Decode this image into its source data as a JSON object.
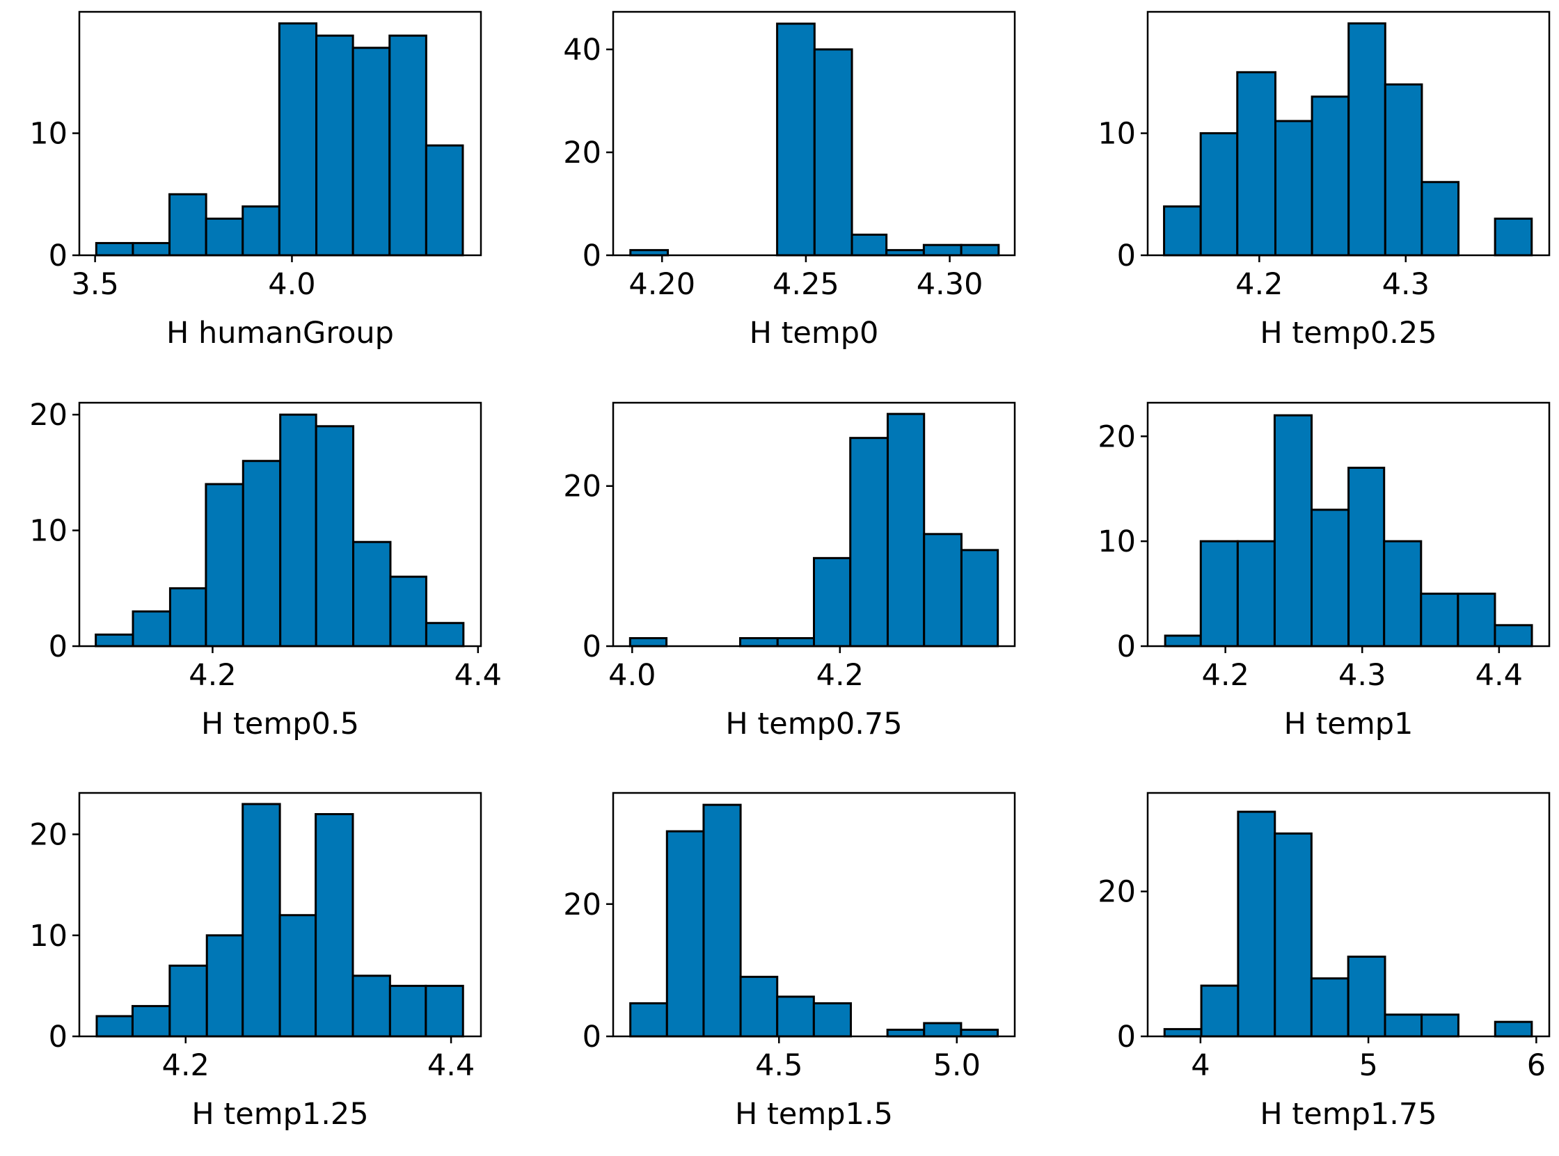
{
  "chart_data": [
    {
      "type": "histogram",
      "xlabel": "H humanGroup",
      "color": "#0077b6",
      "edgecolor": "#000000",
      "bins": [
        3.503,
        3.596,
        3.689,
        3.782,
        3.875,
        3.968,
        4.062,
        4.155,
        4.248,
        4.341,
        4.434
      ],
      "values": [
        1,
        1,
        5,
        3,
        4,
        19,
        18,
        17,
        18,
        9
      ],
      "xlim": [
        3.46,
        4.48
      ],
      "xticks": [
        3.5,
        {
          "value": 4,
          "label": "4.0"
        }
      ],
      "ylim": [
        0,
        19.95
      ],
      "yticks": [
        0,
        10
      ]
    },
    {
      "type": "histogram",
      "xlabel": "H temp0",
      "color": "#0077b6",
      "edgecolor": "#000000",
      "bins": [
        4.189,
        4.202,
        4.214,
        4.227,
        4.24,
        4.253,
        4.266,
        4.278,
        4.291,
        4.304,
        4.317
      ],
      "values": [
        1,
        0,
        0,
        0,
        45,
        40,
        4,
        1,
        2,
        2
      ],
      "xlim": [
        4.183,
        4.3226
      ],
      "xticks": [
        {
          "value": 4.2,
          "label": "4.20"
        },
        4.25,
        {
          "value": 4.3,
          "label": "4.30"
        }
      ],
      "ylim": [
        0,
        47.3
      ],
      "yticks": [
        0,
        20,
        40
      ]
    },
    {
      "type": "histogram",
      "xlabel": "H temp0.25",
      "color": "#0077b6",
      "edgecolor": "#000000",
      "bins": [
        4.135,
        4.16,
        4.185,
        4.211,
        4.236,
        4.261,
        4.286,
        4.311,
        4.336,
        4.361,
        4.386
      ],
      "values": [
        4,
        10,
        15,
        11,
        13,
        19,
        14,
        6,
        0,
        3
      ],
      "xlim": [
        4.1238,
        4.398
      ],
      "xticks": [
        4.2,
        4.3
      ],
      "ylim": [
        0,
        19.95
      ],
      "yticks": [
        0,
        10
      ]
    },
    {
      "type": "histogram",
      "xlabel": "H temp0.5",
      "color": "#0077b6",
      "edgecolor": "#000000",
      "bins": [
        4.112,
        4.14,
        4.168,
        4.195,
        4.223,
        4.251,
        4.278,
        4.306,
        4.334,
        4.361,
        4.389
      ],
      "values": [
        1,
        3,
        5,
        14,
        16,
        20,
        19,
        9,
        6,
        2
      ],
      "xlim": [
        4.0996,
        4.4022
      ],
      "xticks": [
        4.2,
        4.4
      ],
      "ylim": [
        0,
        21.03
      ],
      "yticks": [
        0,
        10,
        20
      ]
    },
    {
      "type": "histogram",
      "xlabel": "H temp0.75",
      "color": "#0077b6",
      "edgecolor": "#000000",
      "bins": [
        3.998,
        4.033,
        4.069,
        4.104,
        4.14,
        4.175,
        4.21,
        4.246,
        4.281,
        4.317,
        4.352
      ],
      "values": [
        1,
        0,
        0,
        1,
        1,
        11,
        26,
        29,
        14,
        12
      ],
      "xlim": [
        3.9817,
        4.3683
      ],
      "xticks": [
        {
          "value": 4,
          "label": "4.0"
        },
        4.2
      ],
      "ylim": [
        0,
        30.4
      ],
      "yticks": [
        0,
        20
      ]
    },
    {
      "type": "histogram",
      "xlabel": "H temp1",
      "color": "#0077b6",
      "edgecolor": "#000000",
      "bins": [
        4.156,
        4.182,
        4.209,
        4.236,
        4.263,
        4.29,
        4.316,
        4.343,
        4.37,
        4.397,
        4.424
      ],
      "values": [
        1,
        10,
        10,
        22,
        13,
        17,
        10,
        5,
        5,
        2
      ],
      "xlim": [
        4.1432,
        4.4367
      ],
      "xticks": [
        4.2,
        4.3,
        4.4
      ],
      "ylim": [
        0,
        23.2
      ],
      "yticks": [
        0,
        10,
        20
      ]
    },
    {
      "type": "histogram",
      "xlabel": "H temp1.25",
      "color": "#0077b6",
      "edgecolor": "#000000",
      "bins": [
        4.133,
        4.16,
        4.188,
        4.216,
        4.243,
        4.271,
        4.298,
        4.326,
        4.354,
        4.381,
        4.409
      ],
      "values": [
        2,
        3,
        7,
        10,
        23,
        12,
        22,
        6,
        5,
        5
      ],
      "xlim": [
        4.1199,
        4.4225
      ],
      "xticks": [
        4.2,
        4.4
      ],
      "ylim": [
        0,
        24.1
      ],
      "yticks": [
        0,
        10,
        20
      ]
    },
    {
      "type": "histogram",
      "xlabel": "H temp1.5",
      "color": "#0077b6",
      "edgecolor": "#000000",
      "bins": [
        4.082,
        4.185,
        4.288,
        4.392,
        4.495,
        4.598,
        4.702,
        4.805,
        4.908,
        5.012,
        5.115
      ],
      "values": [
        5,
        31,
        35,
        9,
        6,
        5,
        0,
        1,
        2,
        1
      ],
      "xlim": [
        4.0337,
        5.1629
      ],
      "xticks": [
        4.5,
        {
          "value": 5,
          "label": "5.0"
        }
      ],
      "ylim": [
        0,
        36.8
      ],
      "yticks": [
        0,
        20
      ]
    },
    {
      "type": "histogram",
      "xlabel": "H temp1.75",
      "color": "#0077b6",
      "edgecolor": "#000000",
      "bins": [
        3.786,
        4.005,
        4.224,
        4.443,
        4.661,
        4.88,
        5.099,
        5.317,
        5.536,
        5.755,
        5.973
      ],
      "values": [
        1,
        7,
        31,
        28,
        8,
        11,
        3,
        3,
        0,
        2
      ],
      "xlim": [
        3.6855,
        6.0772
      ],
      "xticks": [
        4,
        5,
        6
      ],
      "ylim": [
        0,
        33.6
      ],
      "yticks": [
        0,
        20
      ]
    }
  ]
}
